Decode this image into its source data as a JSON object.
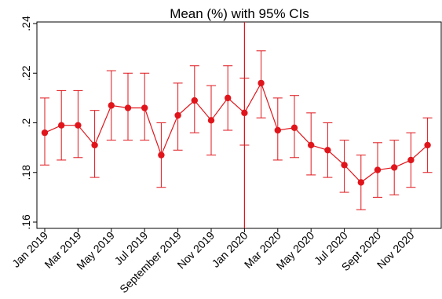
{
  "chart_data": {
    "type": "line",
    "title": "Mean (%) with 95% CIs",
    "xlabel": "",
    "ylabel": "",
    "ylim": [
      0.16,
      0.24
    ],
    "yticks": [
      0.16,
      0.18,
      0.2,
      0.22,
      0.24
    ],
    "ytick_labels": [
      ".16",
      ".18",
      ".2",
      ".22",
      ".24"
    ],
    "x": [
      "Jan 2019",
      "Feb 2019",
      "Mar 2019",
      "Apr 2019",
      "May 2019",
      "Jun 2019",
      "Jul 2019",
      "Aug 2019",
      "Sep 2019",
      "Oct 2019",
      "Nov 2019",
      "Dec 2019",
      "Jan 2020",
      "Feb 2020",
      "Mar 2020",
      "Apr 2020",
      "May 2020",
      "Jun 2020",
      "Jul 2020",
      "Aug 2020",
      "Sep 2020",
      "Oct 2020",
      "Nov 2020",
      "Dec 2020"
    ],
    "xtick_labels": [
      {
        "index": 0,
        "label": "Jan 2019"
      },
      {
        "index": 2,
        "label": "Mar 2019"
      },
      {
        "index": 4,
        "label": "May 2019"
      },
      {
        "index": 6,
        "label": "Jul 2019"
      },
      {
        "index": 8,
        "label": "September 2019"
      },
      {
        "index": 10,
        "label": "Nov 2019"
      },
      {
        "index": 12,
        "label": "Jan 2020"
      },
      {
        "index": 14,
        "label": "Mar 2020"
      },
      {
        "index": 16,
        "label": "May 2020"
      },
      {
        "index": 18,
        "label": "Jul 2020"
      },
      {
        "index": 20,
        "label": "Sept 2020"
      },
      {
        "index": 22,
        "label": "Nov 2020"
      }
    ],
    "series": [
      {
        "values": [
          0.196,
          0.199,
          0.199,
          0.191,
          0.207,
          0.206,
          0.206,
          0.187,
          0.203,
          0.209,
          0.201,
          0.21,
          0.204,
          0.216,
          0.197,
          0.198,
          0.191,
          0.189,
          0.183,
          0.176,
          0.181,
          0.182,
          0.185,
          0.191
        ],
        "lower": [
          0.183,
          0.185,
          0.186,
          0.178,
          0.193,
          0.193,
          0.193,
          0.174,
          0.189,
          0.196,
          0.187,
          0.197,
          0.191,
          0.202,
          0.185,
          0.186,
          0.179,
          0.178,
          0.172,
          0.165,
          0.17,
          0.171,
          0.174,
          0.18
        ],
        "upper": [
          0.21,
          0.213,
          0.213,
          0.205,
          0.221,
          0.22,
          0.22,
          0.2,
          0.216,
          0.223,
          0.215,
          0.223,
          0.218,
          0.229,
          0.21,
          0.211,
          0.204,
          0.2,
          0.193,
          0.187,
          0.192,
          0.193,
          0.196,
          0.202
        ]
      }
    ],
    "vline_at": "Jan 2020",
    "grid": false,
    "colors": {
      "series": "#e0151b",
      "axis": "#000000",
      "background": "#ffffff"
    }
  }
}
